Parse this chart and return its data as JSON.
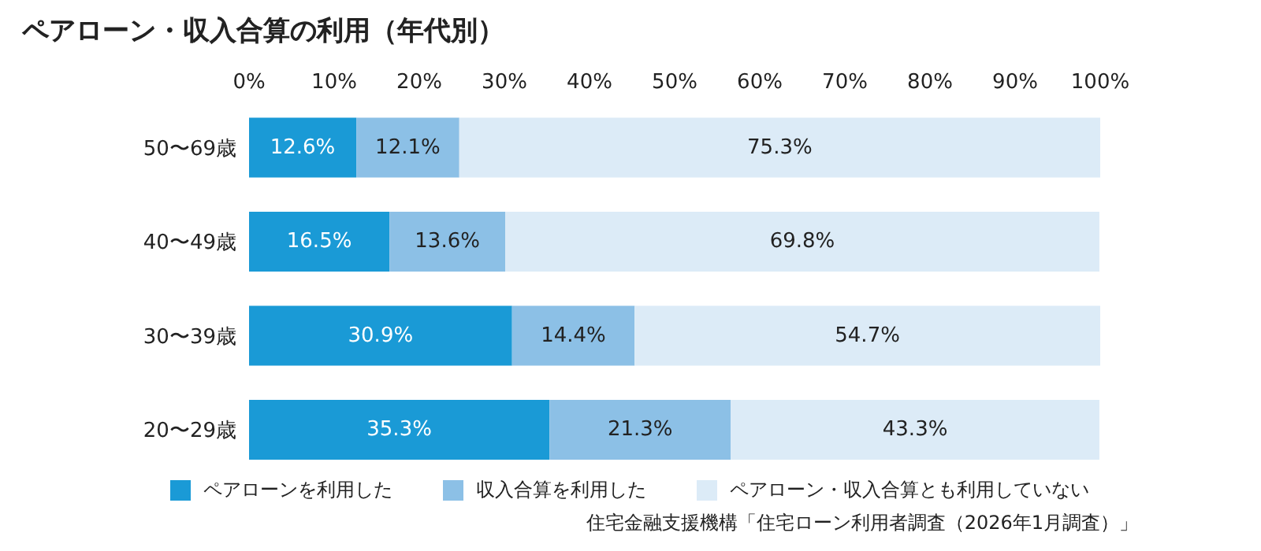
{
  "chart_data": {
    "type": "bar",
    "orientation": "horizontal",
    "stacked": true,
    "title": "ペアローン・収入合算の利用（年代別）",
    "categories": [
      "50〜69歳",
      "40〜49歳",
      "30〜39歳",
      "20〜29歳"
    ],
    "series": [
      {
        "name": "ペアローンを利用した",
        "color": "#1a9ad6",
        "values": [
          12.6,
          16.5,
          30.9,
          35.3
        ]
      },
      {
        "name": "収入合算を利用した",
        "color": "#8cc0e6",
        "values": [
          12.1,
          13.6,
          14.4,
          21.3
        ]
      },
      {
        "name": "ペアローン・収入合算とも利用していない",
        "color": "#dcebf7",
        "values": [
          75.3,
          69.8,
          54.7,
          43.3
        ]
      }
    ],
    "xlim": [
      0,
      100
    ],
    "xticks": [
      {
        "value": 0,
        "label": "0%"
      },
      {
        "value": 10,
        "label": "10%"
      },
      {
        "value": 20,
        "label": "20%"
      },
      {
        "value": 30,
        "label": "30%"
      },
      {
        "value": 40,
        "label": "40%"
      },
      {
        "value": 50,
        "label": "50%"
      },
      {
        "value": 60,
        "label": "60%"
      },
      {
        "value": 70,
        "label": "70%"
      },
      {
        "value": 80,
        "label": "80%"
      },
      {
        "value": 90,
        "label": "90%"
      },
      {
        "value": 100,
        "label": "100%"
      }
    ],
    "value_labels": [
      [
        "12.6%",
        "16.5%",
        "30.9%",
        "35.3%"
      ],
      [
        "12.1%",
        "13.6%",
        "14.4%",
        "21.3%"
      ],
      [
        "75.3%",
        "69.8%",
        "54.7%",
        "43.3%"
      ]
    ],
    "legend": "bottom left",
    "grid": false,
    "annotations": [
      "住宅金融支援機構「住宅ローン利用者調査（2026年1月調査）」"
    ]
  }
}
